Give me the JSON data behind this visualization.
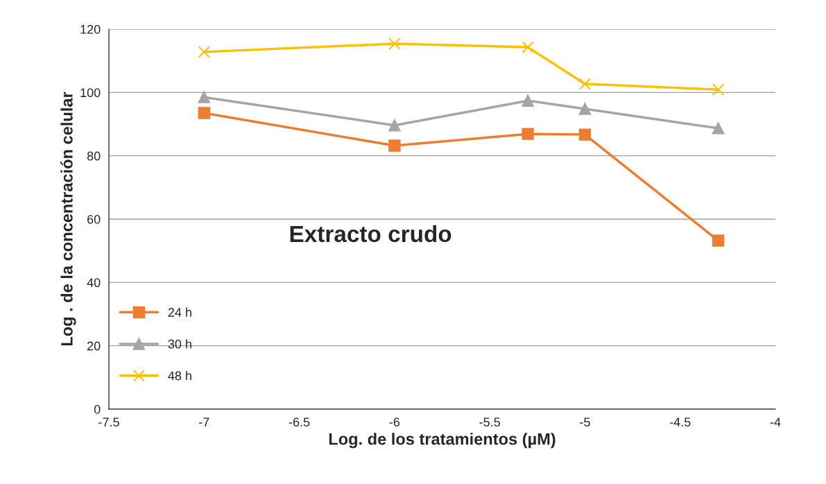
{
  "chart_data": {
    "type": "line",
    "xlabel": "Log. de los tratamientos (µM)",
    "ylabel": "Log . de la concentración celular",
    "x": [
      -7,
      -6,
      -5.3,
      -5,
      -4.3
    ],
    "series": [
      {
        "name": "24 h",
        "color": "#ed7d31",
        "marker": "square",
        "values": [
          93.5,
          83.2,
          86.9,
          86.7,
          53.2
        ]
      },
      {
        "name": "30 h",
        "color": "#a5a5a5",
        "marker": "triangle",
        "values": [
          98.5,
          89.6,
          97.4,
          94.8,
          88.7
        ]
      },
      {
        "name": "48 h",
        "color": "#ffc000",
        "marker": "cross",
        "values": [
          112.8,
          115.4,
          114.3,
          102.7,
          100.9
        ]
      }
    ],
    "xlim": [
      -7.5,
      -4
    ],
    "xticks": [
      -7.5,
      -7,
      -6.5,
      -6,
      -5.5,
      -5,
      -4.5,
      -4
    ],
    "ylim": [
      0,
      120
    ],
    "yticks": [
      0,
      20,
      40,
      60,
      80,
      100,
      120
    ],
    "grid": "y",
    "legend": "bottom left",
    "line_style": "solid",
    "annotations": [
      "Extracto crudo"
    ]
  }
}
